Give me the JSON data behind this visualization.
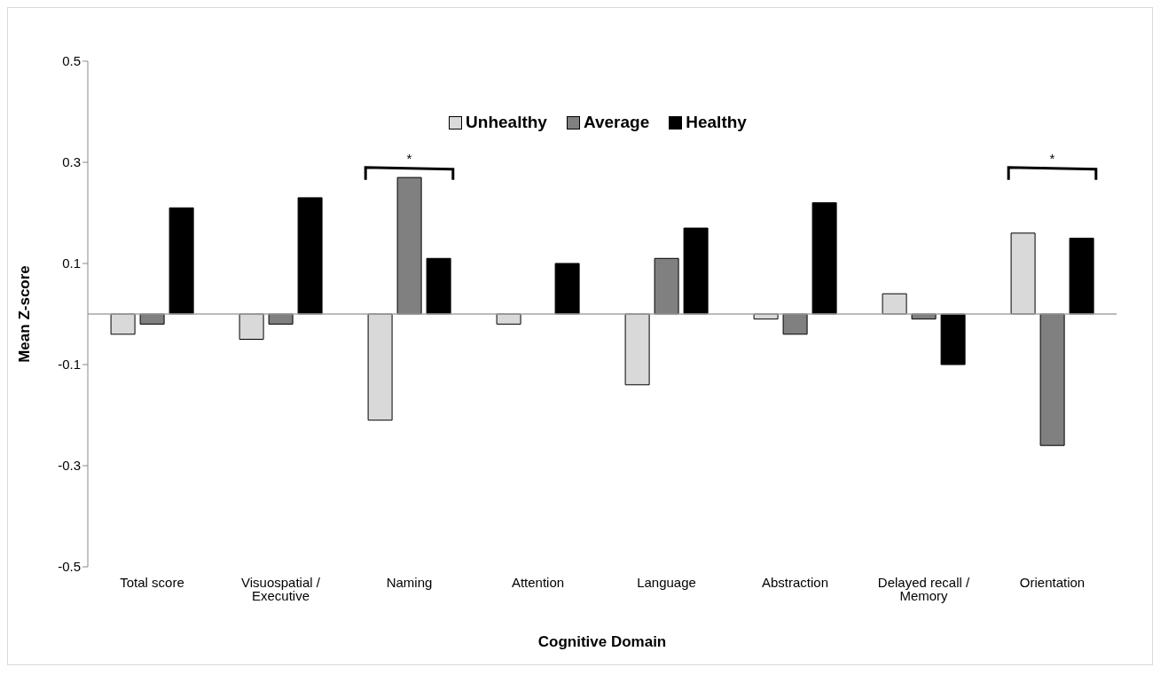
{
  "chart_data": {
    "type": "bar",
    "xlabel": "Cognitive Domain",
    "ylabel": "Mean Z-score",
    "categories": [
      "Total score",
      "Visuospatial / Executive",
      "Naming",
      "Attention",
      "Language",
      "Abstraction",
      "Delayed recall / Memory",
      "Orientation"
    ],
    "series": [
      {
        "name": "Unhealthy",
        "color": "#d9d9d9",
        "values": [
          -0.04,
          -0.05,
          -0.21,
          -0.02,
          -0.14,
          -0.01,
          0.04,
          0.16
        ]
      },
      {
        "name": "Average",
        "color": "#808080",
        "values": [
          -0.02,
          -0.02,
          0.27,
          null,
          0.11,
          -0.04,
          -0.01,
          -0.26
        ]
      },
      {
        "name": "Healthy",
        "color": "#000000",
        "values": [
          0.21,
          0.23,
          0.11,
          0.1,
          0.17,
          0.22,
          -0.1,
          0.15
        ]
      }
    ],
    "ylim": [
      -0.5,
      0.5
    ],
    "yticks": [
      -0.5,
      -0.3,
      -0.1,
      0.1,
      0.3,
      0.5
    ],
    "ref_lines": [
      {
        "axis": "y",
        "value": 0,
        "color": "#a6a6a6"
      }
    ],
    "annotations": [
      "*",
      "*"
    ],
    "legend": "top",
    "grid": false
  }
}
